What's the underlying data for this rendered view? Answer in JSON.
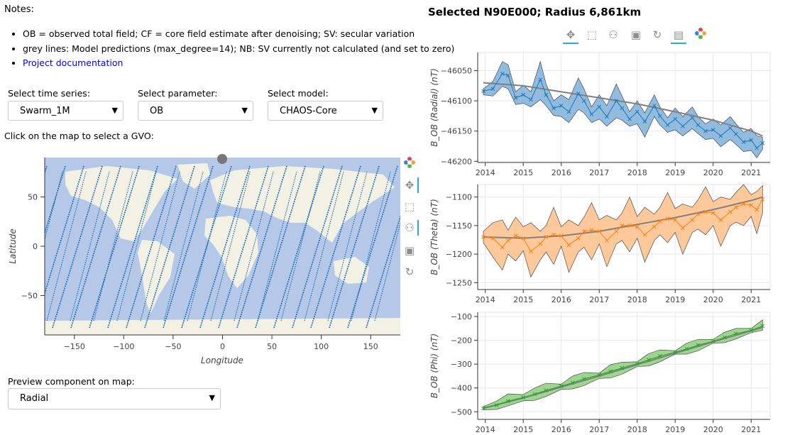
{
  "notes": {
    "title": "Notes:",
    "items": [
      "OB = observed total field; CF = core field estimate after denoising; SV: secular variation",
      "grey lines: Model predictions (max_degree=14); NB: SV currently not calculated (and set to zero)"
    ],
    "link_text": "Project documentation"
  },
  "controls": {
    "timeseries": {
      "label": "Select time series:",
      "value": "Swarm_1M"
    },
    "parameter": {
      "label": "Select parameter:",
      "value": "OB"
    },
    "model": {
      "label": "Select model:",
      "value": "CHAOS-Core"
    },
    "map_hint": "Click on the map to select a GVO:",
    "preview": {
      "label": "Preview component on map:",
      "value": "Radial"
    }
  },
  "map": {
    "xlabel": "Longitude",
    "ylabel": "Latitude",
    "xticks": [
      "−150",
      "−100",
      "−50",
      "0",
      "50",
      "100",
      "150"
    ],
    "yticks": [
      "50",
      "0",
      "−50"
    ],
    "colors": {
      "ocean": "#b6c8e8",
      "land": "#f3f1e4",
      "track": "#1f6fb4"
    }
  },
  "toolbars": {
    "map": [
      "bokeh-logo-icon",
      "pan-icon",
      "box-zoom-icon",
      "wheel-zoom-icon",
      "save-icon",
      "reset-icon"
    ],
    "plots": [
      "pan-icon",
      "box-zoom-icon",
      "wheel-zoom-icon",
      "save-icon",
      "reset-icon",
      "hover-icon",
      "bokeh-logo-icon"
    ]
  },
  "plot_title": "Selected N90E000; Radius 6,861km",
  "chart_data": [
    {
      "type": "area",
      "ylabel": "B_OB (Radial) (nT)",
      "color": "#1f77b4",
      "fill": "#7fb0d9",
      "x_ticks": [
        "2014",
        "2015",
        "2016",
        "2017",
        "2018",
        "2019",
        "2020",
        "2021"
      ],
      "y_ticks": [
        "−46050",
        "−46100",
        "−46150",
        "−46200"
      ],
      "y_tick_values": [
        -46050,
        -46100,
        -46150,
        -46200
      ],
      "ylim": [
        -46202,
        -46020
      ],
      "xlim": [
        2013.8,
        2021.5
      ],
      "x": [
        2013.95,
        2014.2,
        2014.45,
        2014.6,
        2014.8,
        2015.0,
        2015.2,
        2015.45,
        2015.6,
        2015.8,
        2016.0,
        2016.2,
        2016.45,
        2016.6,
        2016.8,
        2017.0,
        2017.2,
        2017.45,
        2017.6,
        2017.8,
        2018.0,
        2018.2,
        2018.45,
        2018.6,
        2018.8,
        2019.0,
        2019.2,
        2019.45,
        2019.6,
        2019.8,
        2020.0,
        2020.2,
        2020.45,
        2020.6,
        2020.8,
        2021.0,
        2021.15,
        2021.3
      ],
      "y": [
        -46084,
        -46080,
        -46055,
        -46058,
        -46095,
        -46090,
        -46098,
        -46065,
        -46090,
        -46112,
        -46108,
        -46118,
        -46088,
        -46100,
        -46122,
        -46110,
        -46126,
        -46100,
        -46112,
        -46130,
        -46118,
        -46134,
        -46108,
        -46125,
        -46140,
        -46130,
        -46142,
        -46128,
        -46140,
        -46150,
        -46148,
        -46158,
        -46145,
        -46155,
        -46168,
        -46165,
        -46178,
        -46170
      ],
      "band_upper": [
        -46080,
        -46068,
        -46035,
        -46040,
        -46085,
        -46074,
        -46085,
        -46035,
        -46072,
        -46100,
        -46090,
        -46098,
        -46062,
        -46080,
        -46110,
        -46090,
        -46108,
        -46072,
        -46092,
        -46118,
        -46100,
        -46120,
        -46090,
        -46110,
        -46128,
        -46112,
        -46126,
        -46110,
        -46126,
        -46138,
        -46130,
        -46140,
        -46126,
        -46138,
        -46152,
        -46146,
        -46158,
        -46160
      ],
      "band_lower": [
        -46090,
        -46092,
        -46076,
        -46080,
        -46106,
        -46104,
        -46110,
        -46098,
        -46108,
        -46124,
        -46126,
        -46136,
        -46114,
        -46120,
        -46136,
        -46130,
        -46142,
        -46128,
        -46132,
        -46142,
        -46138,
        -46160,
        -46126,
        -46140,
        -46152,
        -46148,
        -46158,
        -46146,
        -46154,
        -46164,
        -46162,
        -46176,
        -46164,
        -46172,
        -46184,
        -46182,
        -46194,
        -46180
      ],
      "model_x": [
        2013.95,
        2015,
        2016,
        2017,
        2018,
        2019,
        2020,
        2021,
        2021.3
      ],
      "model_y": [
        -46070,
        -46075,
        -46085,
        -46095,
        -46105,
        -46118,
        -46132,
        -46150,
        -46158
      ]
    },
    {
      "type": "area",
      "ylabel": "B_OB (Theta) (nT)",
      "color": "#ff7f0e",
      "fill": "#fdbf88",
      "x_ticks": [
        "2014",
        "2015",
        "2016",
        "2017",
        "2018",
        "2019",
        "2020",
        "2021"
      ],
      "y_ticks": [
        "−1100",
        "−1150",
        "−1200",
        "−1250"
      ],
      "y_tick_values": [
        -1100,
        -1150,
        -1200,
        -1250
      ],
      "ylim": [
        -1262,
        -1078
      ],
      "xlim": [
        2013.8,
        2021.5
      ],
      "x": [
        2013.95,
        2014.2,
        2014.45,
        2014.6,
        2014.8,
        2015.0,
        2015.2,
        2015.45,
        2015.6,
        2015.8,
        2016.0,
        2016.2,
        2016.45,
        2016.6,
        2016.8,
        2017.0,
        2017.2,
        2017.45,
        2017.6,
        2017.8,
        2018.0,
        2018.2,
        2018.45,
        2018.6,
        2018.8,
        2019.0,
        2019.2,
        2019.45,
        2019.6,
        2019.8,
        2020.0,
        2020.2,
        2020.45,
        2020.6,
        2020.8,
        2021.0,
        2021.15,
        2021.3
      ],
      "y": [
        -1170,
        -1172,
        -1188,
        -1176,
        -1168,
        -1172,
        -1195,
        -1182,
        -1170,
        -1166,
        -1168,
        -1184,
        -1172,
        -1160,
        -1158,
        -1160,
        -1176,
        -1160,
        -1150,
        -1150,
        -1152,
        -1166,
        -1152,
        -1142,
        -1138,
        -1140,
        -1154,
        -1140,
        -1130,
        -1126,
        -1128,
        -1140,
        -1126,
        -1118,
        -1112,
        -1114,
        -1122,
        -1104
      ],
      "band_upper": [
        -1160,
        -1145,
        -1140,
        -1158,
        -1135,
        -1152,
        -1145,
        -1160,
        -1150,
        -1118,
        -1152,
        -1140,
        -1150,
        -1135,
        -1110,
        -1140,
        -1132,
        -1140,
        -1128,
        -1100,
        -1134,
        -1118,
        -1130,
        -1118,
        -1092,
        -1120,
        -1112,
        -1118,
        -1105,
        -1082,
        -1108,
        -1100,
        -1104,
        -1092,
        -1078,
        -1096,
        -1090,
        -1080
      ],
      "band_lower": [
        -1180,
        -1205,
        -1228,
        -1200,
        -1212,
        -1194,
        -1240,
        -1210,
        -1196,
        -1218,
        -1186,
        -1232,
        -1196,
        -1188,
        -1210,
        -1182,
        -1222,
        -1182,
        -1176,
        -1196,
        -1172,
        -1214,
        -1176,
        -1166,
        -1180,
        -1162,
        -1200,
        -1162,
        -1156,
        -1166,
        -1150,
        -1186,
        -1150,
        -1144,
        -1150,
        -1134,
        -1164,
        -1128
      ],
      "model_x": [
        2013.95,
        2015,
        2016,
        2017,
        2018,
        2019,
        2020,
        2021,
        2021.3
      ],
      "model_y": [
        -1170,
        -1172,
        -1168,
        -1160,
        -1148,
        -1136,
        -1122,
        -1106,
        -1100
      ]
    },
    {
      "type": "area",
      "ylabel": "B_OB (Phi) (nT)",
      "color": "#2ca02c",
      "fill": "#8dcf7d",
      "x_ticks": [
        "2014",
        "2015",
        "2016",
        "2017",
        "2018",
        "2019",
        "2020",
        "2021"
      ],
      "y_ticks": [
        "−100",
        "−200",
        "−300",
        "−400",
        "−500"
      ],
      "y_tick_values": [
        -100,
        -200,
        -300,
        -400,
        -500
      ],
      "ylim": [
        -532,
        -82
      ],
      "xlim": [
        2013.8,
        2021.5
      ],
      "x": [
        2013.95,
        2014.3,
        2014.6,
        2015.0,
        2015.3,
        2015.6,
        2016.0,
        2016.3,
        2016.6,
        2017.0,
        2017.3,
        2017.6,
        2018.0,
        2018.3,
        2018.6,
        2019.0,
        2019.3,
        2019.6,
        2020.0,
        2020.3,
        2020.6,
        2021.0,
        2021.3
      ],
      "y": [
        -485,
        -472,
        -455,
        -440,
        -426,
        -410,
        -392,
        -378,
        -362,
        -345,
        -330,
        -316,
        -298,
        -282,
        -266,
        -250,
        -236,
        -220,
        -204,
        -188,
        -172,
        -158,
        -140
      ],
      "band_upper": [
        -478,
        -455,
        -425,
        -428,
        -400,
        -380,
        -384,
        -350,
        -335,
        -338,
        -302,
        -292,
        -290,
        -256,
        -240,
        -244,
        -212,
        -196,
        -196,
        -166,
        -150,
        -150,
        -114
      ],
      "band_lower": [
        -492,
        -490,
        -475,
        -454,
        -452,
        -436,
        -406,
        -404,
        -390,
        -360,
        -358,
        -342,
        -310,
        -308,
        -290,
        -258,
        -258,
        -244,
        -212,
        -210,
        -194,
        -168,
        -158
      ],
      "model_x": [
        2013.95,
        2015,
        2016,
        2017,
        2018,
        2019,
        2020,
        2021,
        2021.3
      ],
      "model_y": [
        -485,
        -442,
        -396,
        -350,
        -302,
        -254,
        -206,
        -160,
        -146
      ]
    }
  ]
}
